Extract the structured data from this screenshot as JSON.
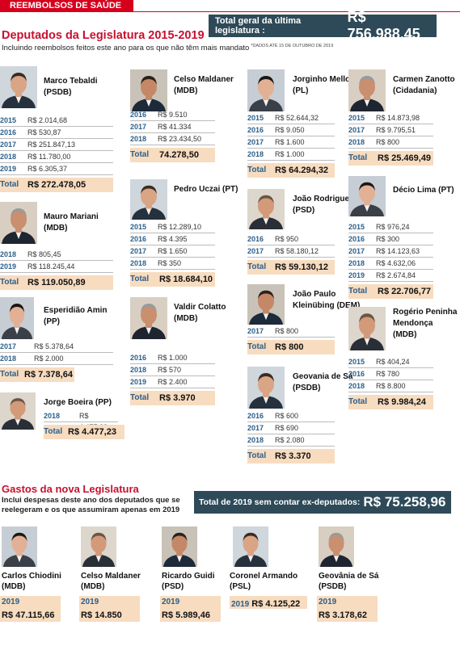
{
  "header": {
    "banner": "REEMBOLSOS DE SAÚDE",
    "grand_total_label": "Total geral da última legislatura :",
    "grand_total_value": "R$ 756.988,45"
  },
  "legislatura": {
    "title": "Deputados da Legislatura 2015-2019",
    "subtitle": "Incluindo reembolsos feitos este ano para os que não têm mais mandato",
    "note": "*DADOS ATÉ 15 DE OUTUBRO DE 2019",
    "total_label": "Total",
    "deputies": [
      {
        "name": "Marco Tebaldi (PSDB)",
        "rows": [
          [
            "2015",
            "R$ 2.014,68"
          ],
          [
            "2016",
            "R$ 530,87"
          ],
          [
            "2017",
            "R$ 251.847,13"
          ],
          [
            "2018",
            "R$ 11.780,00"
          ],
          [
            "2019",
            "R$ 6.305,37"
          ]
        ],
        "total": "R$ 272.478,05"
      },
      {
        "name": "Mauro Mariani (MDB)",
        "rows": [
          [
            "2018",
            "R$ 805,45"
          ],
          [
            "2019",
            "R$ 118.245,44"
          ]
        ],
        "total": "R$ 119.050,89"
      },
      {
        "name": "Esperidião Amin (PP)",
        "rows": [
          [
            "2017",
            "R$ 5.378,64"
          ],
          [
            "2018",
            "R$ 2.000"
          ]
        ],
        "total": "R$ 7.378,64"
      },
      {
        "name": "Jorge Boeira (PP)",
        "rows": [
          [
            "2018",
            "R$ 4.477,23"
          ]
        ],
        "total": "R$ 4.477,23"
      },
      {
        "name": "Celso Maldaner (MDB)",
        "rows": [
          [
            "2016",
            "R$ 9.510"
          ],
          [
            "2017",
            "R$ 41.334"
          ],
          [
            "2018",
            "R$ 23.434,50"
          ]
        ],
        "total": "74.278,50"
      },
      {
        "name": "Pedro Uczai (PT)",
        "rows": [
          [
            "2015",
            "R$ 12.289,10"
          ],
          [
            "2016",
            "R$ 4.395"
          ],
          [
            "2017",
            "R$ 1.650"
          ],
          [
            "2018",
            "R$ 350"
          ]
        ],
        "total": "R$ 18.684,10"
      },
      {
        "name": "Valdir Colatto (MDB)",
        "rows": [
          [
            "2016",
            "R$ 1.000"
          ],
          [
            "2018",
            "R$ 570"
          ],
          [
            "2019",
            "R$ 2.400"
          ]
        ],
        "total": "R$ 3.970"
      },
      {
        "name": "Jorginho Mello (PL)",
        "rows": [
          [
            "2015",
            "R$ 52.644,32"
          ],
          [
            "2016",
            "R$ 9.050"
          ],
          [
            "2017",
            "R$ 1.600"
          ],
          [
            "2018",
            "R$ 1.000"
          ]
        ],
        "total": "R$ 64.294,32"
      },
      {
        "name": "João Rodrigues (PSD)",
        "rows": [
          [
            "2016",
            "R$ 950"
          ],
          [
            "2017",
            "R$ 58.180,12"
          ]
        ],
        "total": "R$ 59.130,12"
      },
      {
        "name": "João Paulo Kleinübing (DEM)",
        "rows": [
          [
            "2017",
            "R$ 800"
          ]
        ],
        "total": "R$ 800"
      },
      {
        "name": "Geovania de Sá (PSDB)",
        "rows": [
          [
            "2016",
            "R$ 600"
          ],
          [
            "2017",
            "R$ 690"
          ],
          [
            "2018",
            "R$ 2.080"
          ]
        ],
        "total": "R$ 3.370"
      },
      {
        "name": "Carmen Zanotto (Cidadania)",
        "rows": [
          [
            "2015",
            "R$ 14.873,98"
          ],
          [
            "2017",
            "R$ 9.795,51"
          ],
          [
            "2018",
            "R$ 800"
          ]
        ],
        "total": "R$ 25.469,49"
      },
      {
        "name": "Décio Lima (PT)",
        "rows": [
          [
            "2015",
            "R$ 976,24"
          ],
          [
            "2016",
            "R$ 300"
          ],
          [
            "2017",
            "R$ 14.123,63"
          ],
          [
            "2018",
            "R$ 4.632,06"
          ],
          [
            "2019",
            "R$ 2.674,84"
          ]
        ],
        "total": "R$ 22.706,77"
      },
      {
        "name": "Rogério Peninha Mendonça (MDB)",
        "rows": [
          [
            "2015",
            "R$ 404,24"
          ],
          [
            "2016",
            "R$ 780"
          ],
          [
            "2018",
            "R$ 8.800"
          ]
        ],
        "total": "R$ 9.984,24"
      }
    ]
  },
  "nova": {
    "title": "Gastos da nova Legislatura",
    "subtitle": "Inclui despesas deste ano dos deputados que se reelegeram e os que assumiram apenas em 2019",
    "total_label": "Total de 2019 sem contar ex-deputados:",
    "total_value": "R$ 75.258,96",
    "deputies": [
      {
        "name": "Carlos Chiodini (MDB)",
        "year": "2019",
        "value": "R$ 47.115,66"
      },
      {
        "name": "Celso Maldaner (MDB)",
        "year": "2019",
        "value": "R$ 14.850"
      },
      {
        "name": "Ricardo Guidi (PSD)",
        "year": "2019",
        "value": "R$ 5.989,46"
      },
      {
        "name": "Coronel Armando (PSL)",
        "year": "2019",
        "value": "R$ 4.125,22"
      },
      {
        "name": "Geovânia de Sá (PSDB)",
        "year": "2019",
        "value": "R$ 3.178,62"
      }
    ]
  }
}
